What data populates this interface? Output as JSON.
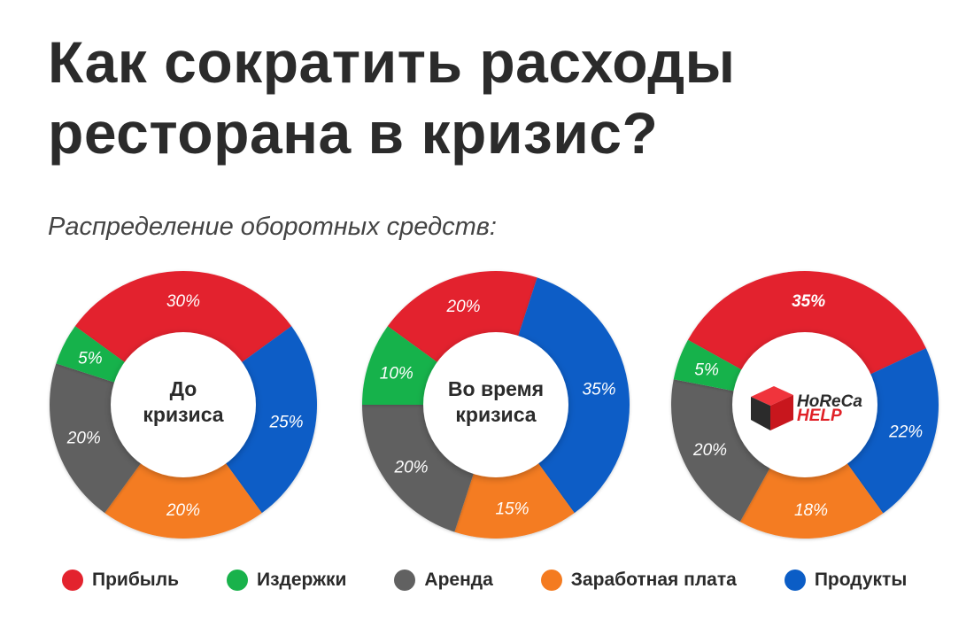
{
  "title": {
    "line1": "Как сократить расходы",
    "line2": "ресторана в кризис?"
  },
  "subtitle": "Распределение оборотных средств:",
  "colors": {
    "profit": "#e3232e",
    "costs": "#19b24b",
    "rent": "#616161",
    "salary": "#f47b20",
    "products": "#0b5dc6"
  },
  "legend": [
    {
      "key": "profit",
      "label": "Прибыль"
    },
    {
      "key": "costs",
      "label": "Издержки"
    },
    {
      "key": "rent",
      "label": "Аренда"
    },
    {
      "key": "salary",
      "label": "Заработная плата"
    },
    {
      "key": "products",
      "label": "Продукты"
    }
  ],
  "logo": {
    "icon": "cube-icon",
    "line1": "HoReCa",
    "line2": "HELP"
  },
  "chart_data": [
    {
      "type": "pie",
      "variant": "donut",
      "center_label": [
        "До",
        "кризиса"
      ],
      "series": [
        {
          "name": "Прибыль",
          "key": "profit",
          "value": 30,
          "label": "30%"
        },
        {
          "name": "Продукты",
          "key": "products",
          "value": 25,
          "label": "25%"
        },
        {
          "name": "Заработная плата",
          "key": "salary",
          "value": 20,
          "label": "20%"
        },
        {
          "name": "Аренда",
          "key": "rent",
          "value": 20,
          "label": "20%"
        },
        {
          "name": "Издержки",
          "key": "costs",
          "value": 5,
          "label": "5%"
        }
      ]
    },
    {
      "type": "pie",
      "variant": "donut",
      "center_label": [
        "Во время",
        "кризиса"
      ],
      "series": [
        {
          "name": "Прибыль",
          "key": "profit",
          "value": 20,
          "label": "20%"
        },
        {
          "name": "Продукты",
          "key": "products",
          "value": 35,
          "label": "35%"
        },
        {
          "name": "Заработная плата",
          "key": "salary",
          "value": 15,
          "label": "15%"
        },
        {
          "name": "Аренда",
          "key": "rent",
          "value": 20,
          "label": "20%"
        },
        {
          "name": "Издержки",
          "key": "costs",
          "value": 10,
          "label": "10%"
        }
      ]
    },
    {
      "type": "pie",
      "variant": "donut",
      "center_label": [],
      "center_logo": true,
      "series": [
        {
          "name": "Прибыль",
          "key": "profit",
          "value": 35,
          "label": "35%"
        },
        {
          "name": "Продукты",
          "key": "products",
          "value": 22,
          "label": "22%"
        },
        {
          "name": "Заработная плата",
          "key": "salary",
          "value": 18,
          "label": "18%"
        },
        {
          "name": "Аренда",
          "key": "rent",
          "value": 20,
          "label": "20%"
        },
        {
          "name": "Издержки",
          "key": "costs",
          "value": 5,
          "label": "5%"
        }
      ]
    }
  ]
}
